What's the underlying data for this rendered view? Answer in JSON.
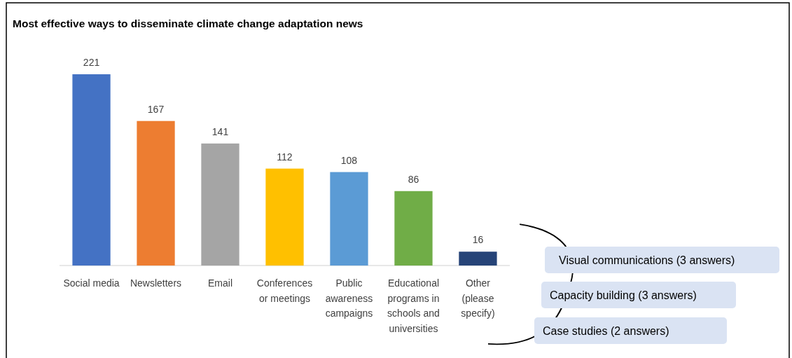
{
  "chart_data": {
    "type": "bar",
    "title": "Most effective ways to disseminate climate change adaptation news",
    "categories": [
      "Social media",
      "Newsletters",
      "Email",
      "Conferences or meetings",
      "Public awareness campaigns",
      "Educational programs in schools and universities",
      "Other (please specify)"
    ],
    "values": [
      221,
      167,
      141,
      112,
      108,
      86,
      16
    ],
    "colors": [
      "#4472c4",
      "#ed7d31",
      "#a5a5a5",
      "#ffc000",
      "#5b9bd5",
      "#70ad47",
      "#264478"
    ],
    "data_labels": true,
    "annotations": [
      "Visual communications (3 answers)",
      "Capacity building (3 answers)",
      "Case studies (2 answers)"
    ]
  }
}
